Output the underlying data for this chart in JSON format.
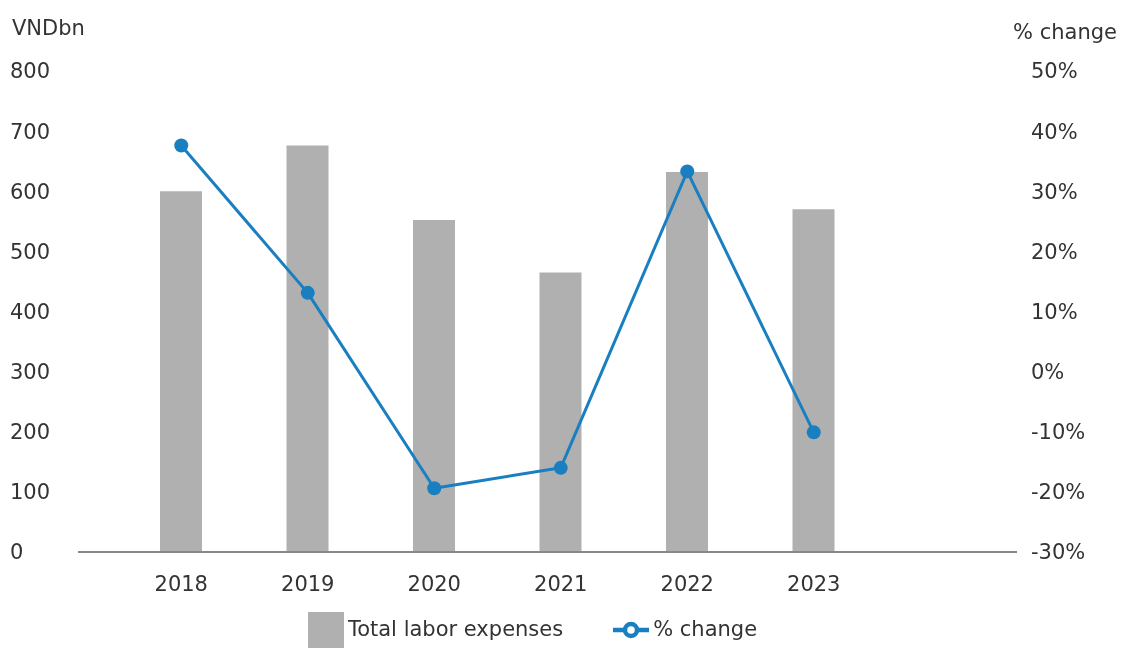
{
  "chart_data": {
    "type": "bar",
    "ylabel": "VNDbn",
    "y2label": "% change",
    "categories": [
      "2018",
      "2019",
      "2020",
      "2021",
      "2022",
      "2023"
    ],
    "series": [
      {
        "name": "Total labor expenses",
        "color": "#b0b0b0",
        "values": [
          600,
          676,
          552,
          465,
          632,
          570
        ]
      },
      {
        "name": "% change",
        "type": "line",
        "axis": "y2",
        "color": "#1a7fc1",
        "values": [
          37.6,
          13.1,
          -19.4,
          -16.0,
          33.3,
          -10.1
        ]
      }
    ],
    "ylim": [
      0,
      800
    ],
    "yticks": [
      0,
      100,
      200,
      300,
      400,
      500,
      600,
      700,
      800
    ],
    "y2lim": [
      -30,
      50
    ],
    "y2ticks": [
      {
        "value": -30,
        "label": "-30%"
      },
      {
        "value": -20,
        "label": "-20%"
      },
      {
        "value": -10,
        "label": "-10%"
      },
      {
        "value": 0,
        "label": "0%"
      },
      {
        "value": 10,
        "label": "10%"
      },
      {
        "value": 20,
        "label": "20%"
      },
      {
        "value": 30,
        "label": "30%"
      },
      {
        "value": 40,
        "label": "40%"
      },
      {
        "value": 50,
        "label": "50%"
      }
    ],
    "marker": "circle",
    "legend": "bottom",
    "grid": false
  }
}
